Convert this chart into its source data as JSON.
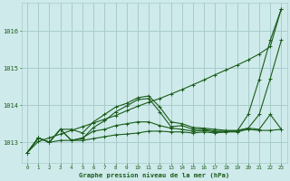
{
  "bg_color": "#ceeaea",
  "grid_color": "#a8cccc",
  "line_color": "#1a5c1a",
  "xlabel": "Graphe pression niveau de la mer (hPa)",
  "ylim": [
    1012.45,
    1016.75
  ],
  "yticks": [
    1013,
    1014,
    1015,
    1016
  ],
  "xlim": [
    -0.5,
    23.5
  ],
  "xticks": [
    0,
    1,
    2,
    3,
    4,
    5,
    6,
    7,
    8,
    9,
    10,
    11,
    12,
    13,
    14,
    15,
    16,
    17,
    18,
    19,
    20,
    21,
    22,
    23
  ],
  "series": [
    {
      "y": [
        1012.72,
        1013.02,
        1013.12,
        1013.22,
        1013.32,
        1013.42,
        1013.52,
        1013.62,
        1013.72,
        1013.85,
        1013.97,
        1014.08,
        1014.18,
        1014.3,
        1014.42,
        1014.55,
        1014.68,
        1014.82,
        1014.95,
        1015.08,
        1015.22,
        1015.38,
        1015.58,
        1016.6
      ]
    },
    {
      "y": [
        1012.72,
        1013.12,
        1013.0,
        1013.35,
        1013.35,
        1013.25,
        1013.55,
        1013.75,
        1013.95,
        1014.05,
        1014.2,
        1014.25,
        1013.95,
        1013.55,
        1013.5,
        1013.4,
        1013.38,
        1013.35,
        1013.32,
        1013.32,
        1013.38,
        1013.75,
        1014.72,
        1015.75
      ]
    },
    {
      "y": [
        1012.72,
        1013.12,
        1013.0,
        1013.35,
        1013.05,
        1013.1,
        1013.4,
        1013.58,
        1013.82,
        1013.98,
        1014.15,
        1014.18,
        1013.82,
        1013.42,
        1013.45,
        1013.35,
        1013.35,
        1013.3,
        1013.3,
        1013.3,
        1013.75,
        1014.7,
        1015.75,
        1016.6
      ]
    },
    {
      "y": [
        1012.72,
        1013.12,
        1013.0,
        1013.05,
        1013.05,
        1013.05,
        1013.1,
        1013.15,
        1013.2,
        1013.22,
        1013.25,
        1013.3,
        1013.3,
        1013.28,
        1013.28,
        1013.25,
        1013.28,
        1013.25,
        1013.28,
        1013.28,
        1013.35,
        1013.32,
        1013.32,
        1013.35
      ]
    },
    {
      "y": [
        1012.72,
        1013.12,
        1013.0,
        1013.35,
        1013.05,
        1013.12,
        1013.3,
        1013.35,
        1013.45,
        1013.5,
        1013.55,
        1013.55,
        1013.45,
        1013.38,
        1013.35,
        1013.3,
        1013.32,
        1013.28,
        1013.28,
        1013.3,
        1013.38,
        1013.35,
        1013.75,
        1013.35
      ]
    }
  ]
}
